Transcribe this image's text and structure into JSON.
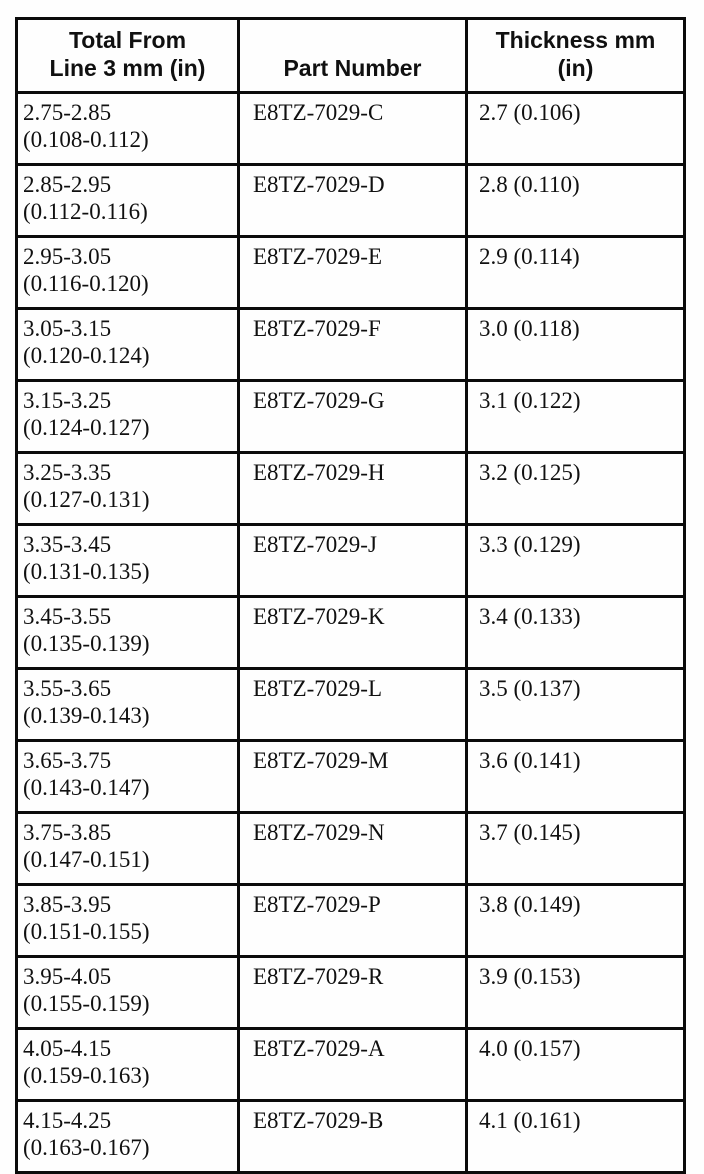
{
  "table": {
    "columns": [
      {
        "lines": [
          "Total From",
          "Line 3 mm (in)"
        ]
      },
      {
        "lines": [
          "Part Number"
        ]
      },
      {
        "lines": [
          "Thickness mm",
          "(in)"
        ]
      }
    ],
    "rows": [
      {
        "range_mm": "2.75-2.85",
        "range_in": "(0.108-0.112)",
        "part_number": "E8TZ-7029-C",
        "thickness": "2.7 (0.106)"
      },
      {
        "range_mm": "2.85-2.95",
        "range_in": "(0.112-0.116)",
        "part_number": "E8TZ-7029-D",
        "thickness": "2.8 (0.110)"
      },
      {
        "range_mm": "2.95-3.05",
        "range_in": "(0.116-0.120)",
        "part_number": "E8TZ-7029-E",
        "thickness": "2.9 (0.114)"
      },
      {
        "range_mm": "3.05-3.15",
        "range_in": "(0.120-0.124)",
        "part_number": "E8TZ-7029-F",
        "thickness": "3.0 (0.118)"
      },
      {
        "range_mm": "3.15-3.25",
        "range_in": "(0.124-0.127)",
        "part_number": "E8TZ-7029-G",
        "thickness": "3.1 (0.122)"
      },
      {
        "range_mm": "3.25-3.35",
        "range_in": "(0.127-0.131)",
        "part_number": "E8TZ-7029-H",
        "thickness": "3.2 (0.125)"
      },
      {
        "range_mm": "3.35-3.45",
        "range_in": "(0.131-0.135)",
        "part_number": "E8TZ-7029-J",
        "thickness": "3.3 (0.129)"
      },
      {
        "range_mm": "3.45-3.55",
        "range_in": "(0.135-0.139)",
        "part_number": "E8TZ-7029-K",
        "thickness": "3.4 (0.133)"
      },
      {
        "range_mm": "3.55-3.65",
        "range_in": "(0.139-0.143)",
        "part_number": "E8TZ-7029-L",
        "thickness": "3.5 (0.137)"
      },
      {
        "range_mm": "3.65-3.75",
        "range_in": "(0.143-0.147)",
        "part_number": "E8TZ-7029-M",
        "thickness": "3.6 (0.141)"
      },
      {
        "range_mm": "3.75-3.85",
        "range_in": "(0.147-0.151)",
        "part_number": "E8TZ-7029-N",
        "thickness": "3.7 (0.145)"
      },
      {
        "range_mm": "3.85-3.95",
        "range_in": "(0.151-0.155)",
        "part_number": "E8TZ-7029-P",
        "thickness": "3.8 (0.149)"
      },
      {
        "range_mm": "3.95-4.05",
        "range_in": "(0.155-0.159)",
        "part_number": "E8TZ-7029-R",
        "thickness": "3.9 (0.153)"
      },
      {
        "range_mm": "4.05-4.15",
        "range_in": "(0.159-0.163)",
        "part_number": "E8TZ-7029-A",
        "thickness": "4.0 (0.157)"
      },
      {
        "range_mm": "4.15-4.25",
        "range_in": "(0.163-0.167)",
        "part_number": "E8TZ-7029-B",
        "thickness": "4.1 (0.161)"
      }
    ]
  }
}
